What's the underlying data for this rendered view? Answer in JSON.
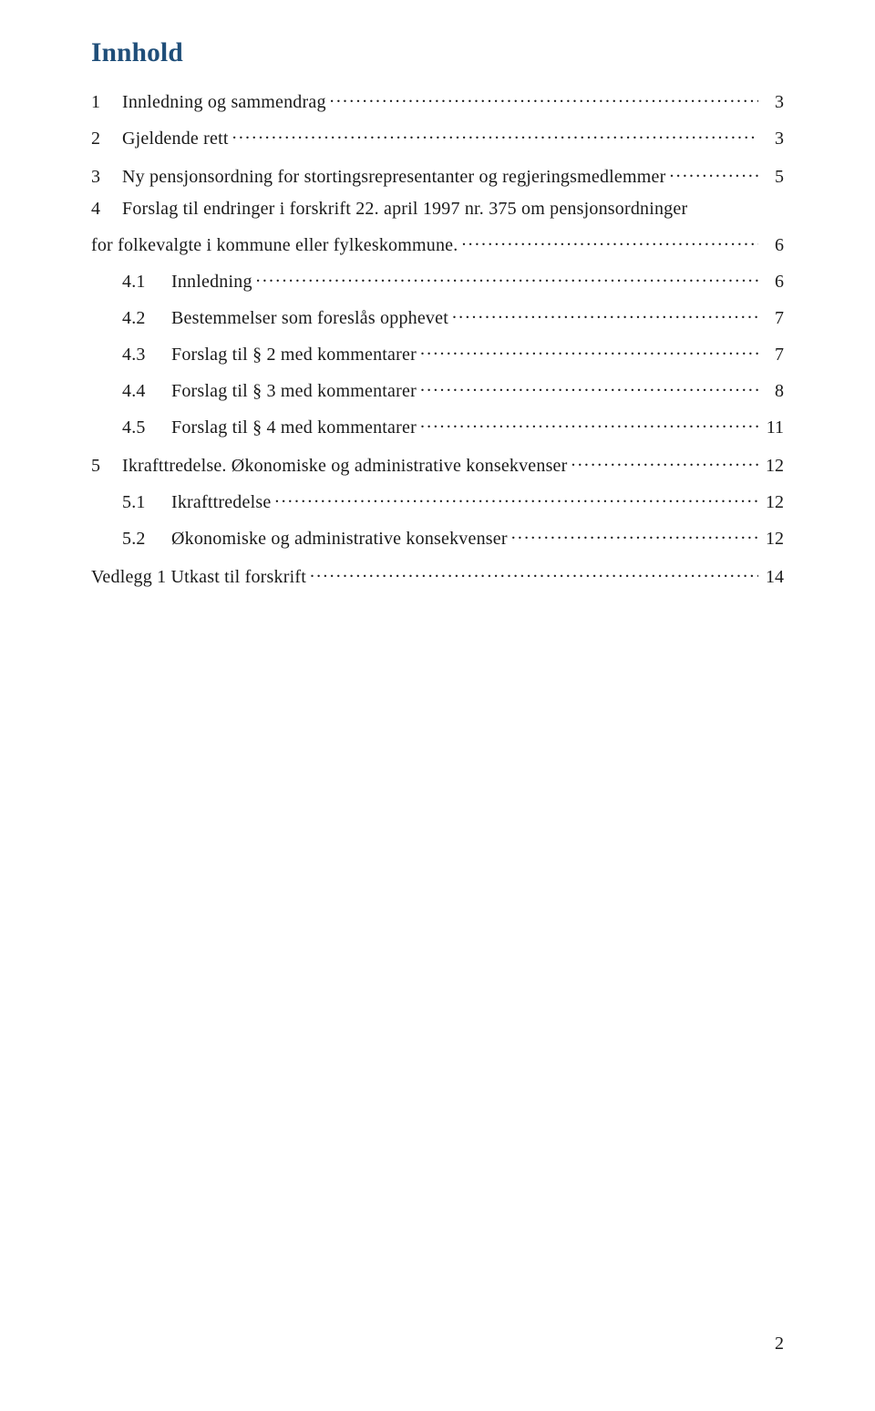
{
  "title": {
    "text": "Innhold",
    "color": "#1f4e79",
    "font_size_pt": 22
  },
  "toc": {
    "body_color": "#1a1a1a",
    "body_font_size_pt": 15,
    "entries": [
      {
        "level": 1,
        "num": "1",
        "label": "Innledning og sammendrag",
        "page": "3"
      },
      {
        "level": 1,
        "num": "2",
        "label": "Gjeldende rett",
        "page": "3"
      },
      {
        "level": 1,
        "num": "3",
        "label": "Ny pensjonsordning for stortingsrepresentanter og regjeringsmedlemmer",
        "page": "5",
        "gap_before": 2
      },
      {
        "level": 1,
        "num": "4",
        "label": "Forslag til endringer i forskrift 22. april 1997 nr. 375 om pensjonsordninger",
        "page": "",
        "gap_before": 2
      },
      {
        "level": 1,
        "num": "",
        "label": "for folkevalgte i kommune eller fylkeskommune.",
        "page": "6",
        "continuation": true
      },
      {
        "level": 2,
        "num": "4.1",
        "label": "Innledning",
        "page": "6"
      },
      {
        "level": 2,
        "num": "4.2",
        "label": "Bestemmelser som foreslås opphevet",
        "page": "7"
      },
      {
        "level": 2,
        "num": "4.3",
        "label": "Forslag til § 2 med kommentarer",
        "page": "7"
      },
      {
        "level": 2,
        "num": "4.4",
        "label": "Forslag til § 3 med kommentarer",
        "page": "8"
      },
      {
        "level": 2,
        "num": "4.5",
        "label": "Forslag til § 4 med kommentarer",
        "page": "11"
      },
      {
        "level": 1,
        "num": "5",
        "label": "Ikrafttredelse. Økonomiske og administrative konsekvenser",
        "page": "12",
        "gap_before": 2
      },
      {
        "level": 2,
        "num": "5.1",
        "label": "Ikrafttredelse",
        "page": "12"
      },
      {
        "level": 2,
        "num": "5.2",
        "label": "Økonomiske og administrative konsekvenser",
        "page": "12"
      },
      {
        "level": 1,
        "num": "",
        "label": "Vedlegg 1 Utkast til forskrift",
        "page": "14",
        "no_num": true,
        "gap_before": 2
      }
    ]
  },
  "footer_page_number": "2",
  "footer_color": "#1a1a1a",
  "footer_font_size_pt": 15
}
